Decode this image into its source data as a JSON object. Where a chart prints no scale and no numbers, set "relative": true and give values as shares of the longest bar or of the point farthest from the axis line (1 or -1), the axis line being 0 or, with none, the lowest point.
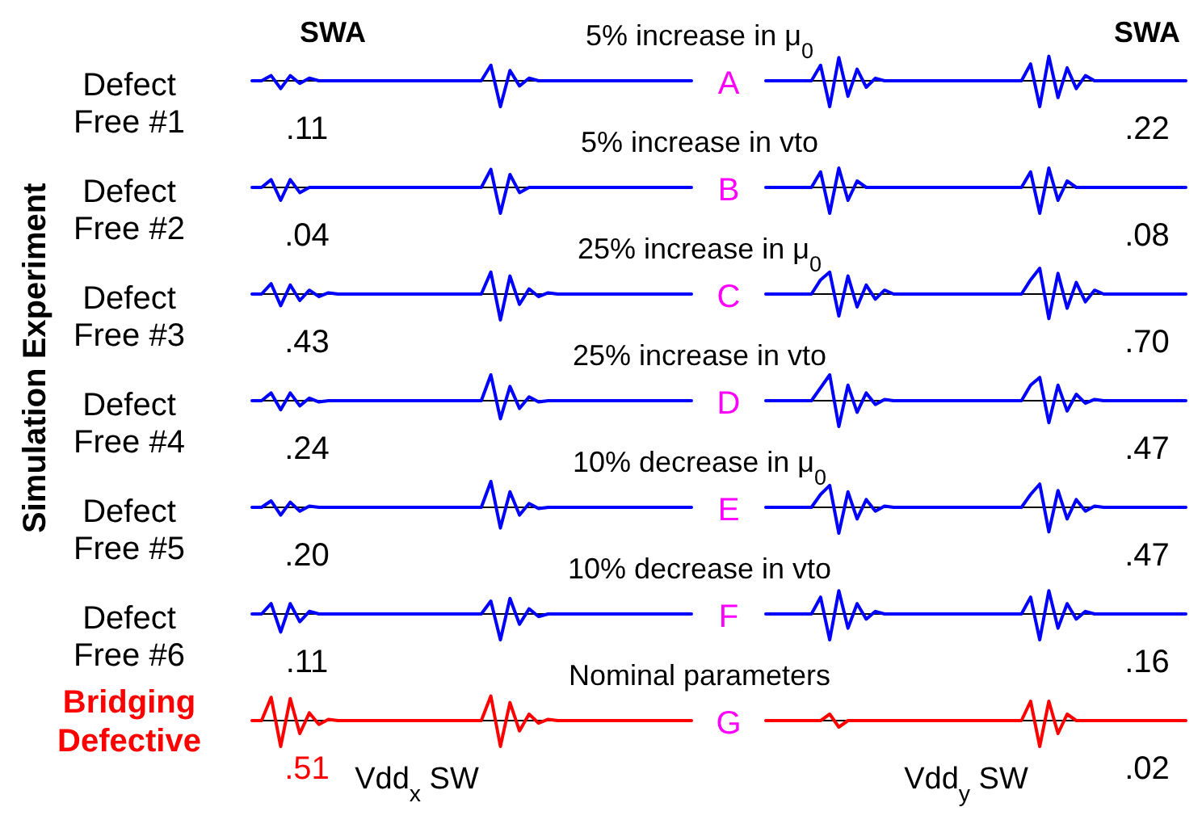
{
  "chart_data": [
    {
      "type": "line",
      "relative": true,
      "title": "5% increase in μ$_{0}$",
      "ylabel": "Defect Free #1",
      "annotations": [
        "A",
        ".11",
        "SWA",
        "Simulation Experiment"
      ],
      "categories": [
        null,
        null,
        null,
        null,
        null,
        null,
        null,
        null,
        null,
        null,
        null,
        null,
        null,
        null,
        null,
        null,
        null,
        null,
        null,
        null,
        null,
        null,
        null,
        null,
        null,
        null,
        null,
        null,
        null,
        null,
        null,
        null,
        null,
        null,
        null,
        null,
        null,
        null,
        null,
        null,
        null,
        null,
        null,
        null,
        null,
        null,
        null
      ],
      "series": [
        {
          "color": "#0000ff",
          "values": [
            0,
            0,
            0.2,
            -0.3,
            0.2,
            -0.1,
            0.1,
            0,
            0,
            0,
            0,
            0,
            0,
            0,
            0,
            0,
            0,
            0,
            0,
            0,
            0,
            0,
            0,
            0,
            0,
            0.6,
            -1,
            0.4,
            -0.2,
            0.1,
            0,
            0,
            0,
            0,
            0,
            0,
            0,
            0,
            0,
            0,
            0,
            0,
            0,
            0,
            0,
            0,
            0
          ]
        }
      ]
    },
    {
      "type": "line",
      "relative": true,
      "annotations": [
        ".22",
        "SWA"
      ],
      "categories": [
        null,
        null,
        null,
        null,
        null,
        null,
        null,
        null,
        null,
        null,
        null,
        null,
        null,
        null,
        null,
        null,
        null,
        null,
        null,
        null,
        null,
        null,
        null,
        null,
        null,
        null,
        null,
        null,
        null,
        null,
        null,
        null,
        null,
        null,
        null,
        null,
        null,
        null,
        null,
        null,
        null,
        null,
        null,
        null,
        null,
        null,
        null
      ],
      "series": [
        {
          "color": "#0000ff",
          "values": [
            0,
            0,
            0,
            0,
            0,
            0,
            0.6,
            -1,
            0.9,
            -0.6,
            0.45,
            -0.25,
            0.1,
            0,
            0,
            0,
            0,
            0,
            0,
            0,
            0,
            0,
            0,
            0,
            0,
            0,
            0,
            0,
            0,
            0.65,
            -1,
            0.95,
            -0.65,
            0.5,
            -0.3,
            0.2,
            0,
            0,
            0,
            0,
            0,
            0,
            0,
            0,
            0,
            0,
            0
          ]
        }
      ]
    },
    {
      "type": "line",
      "relative": true,
      "title": "5% increase in vto",
      "ylabel": "Defect Free #2",
      "annotations": [
        "B",
        ".04"
      ],
      "categories": [
        null,
        null,
        null,
        null,
        null,
        null,
        null,
        null,
        null,
        null,
        null,
        null,
        null,
        null,
        null,
        null,
        null,
        null,
        null,
        null,
        null,
        null,
        null,
        null,
        null,
        null,
        null,
        null,
        null,
        null,
        null,
        null,
        null,
        null,
        null,
        null,
        null,
        null,
        null,
        null,
        null,
        null,
        null,
        null,
        null,
        null,
        null
      ],
      "series": [
        {
          "color": "#0000ff",
          "values": [
            0,
            0,
            0.3,
            -0.5,
            0.3,
            -0.2,
            0,
            0,
            0,
            0,
            0,
            0,
            0,
            0,
            0,
            0,
            0,
            0,
            0,
            0,
            0,
            0,
            0,
            0,
            0,
            0.7,
            -1,
            0.5,
            -0.2,
            0,
            0,
            0,
            0,
            0,
            0,
            0,
            0,
            0,
            0,
            0,
            0,
            0,
            0,
            0,
            0,
            0,
            0
          ]
        }
      ]
    },
    {
      "type": "line",
      "relative": true,
      "annotations": [
        ".08"
      ],
      "categories": [
        null,
        null,
        null,
        null,
        null,
        null,
        null,
        null,
        null,
        null,
        null,
        null,
        null,
        null,
        null,
        null,
        null,
        null,
        null,
        null,
        null,
        null,
        null,
        null,
        null,
        null,
        null,
        null,
        null,
        null,
        null,
        null,
        null,
        null,
        null,
        null,
        null,
        null,
        null,
        null,
        null,
        null,
        null,
        null,
        null,
        null,
        null
      ],
      "series": [
        {
          "color": "#0000ff",
          "values": [
            0,
            0,
            0,
            0,
            0,
            0,
            0.6,
            -1,
            0.75,
            -0.5,
            0.25,
            0,
            0,
            0,
            0,
            0,
            0,
            0,
            0,
            0,
            0,
            0,
            0,
            0,
            0,
            0,
            0,
            0,
            0,
            0.6,
            -1,
            0.75,
            -0.5,
            0.25,
            0,
            0,
            0,
            0,
            0,
            0,
            0,
            0,
            0,
            0,
            0,
            0,
            0
          ]
        }
      ]
    },
    {
      "type": "line",
      "relative": true,
      "title": "25% increase in μ$_{0}$",
      "ylabel": "Defect Free #3",
      "annotations": [
        "C",
        ".43"
      ],
      "categories": [
        null,
        null,
        null,
        null,
        null,
        null,
        null,
        null,
        null,
        null,
        null,
        null,
        null,
        null,
        null,
        null,
        null,
        null,
        null,
        null,
        null,
        null,
        null,
        null,
        null,
        null,
        null,
        null,
        null,
        null,
        null,
        null,
        null,
        null,
        null,
        null,
        null,
        null,
        null,
        null,
        null,
        null,
        null,
        null,
        null,
        null,
        null
      ],
      "series": [
        {
          "color": "#0000ff",
          "values": [
            0,
            0,
            0.4,
            -0.45,
            0.35,
            -0.25,
            0.15,
            -0.1,
            0.05,
            0,
            0,
            0,
            0,
            0,
            0,
            0,
            0,
            0,
            0,
            0,
            0,
            0,
            0,
            0,
            0,
            0.85,
            -1,
            0.7,
            -0.4,
            0.2,
            -0.1,
            0.05,
            0,
            0,
            0,
            0,
            0,
            0,
            0,
            0,
            0,
            0,
            0,
            0,
            0,
            0,
            0
          ]
        }
      ]
    },
    {
      "type": "line",
      "relative": true,
      "annotations": [
        ".70"
      ],
      "categories": [
        null,
        null,
        null,
        null,
        null,
        null,
        null,
        null,
        null,
        null,
        null,
        null,
        null,
        null,
        null,
        null,
        null,
        null,
        null,
        null,
        null,
        null,
        null,
        null,
        null,
        null,
        null,
        null,
        null,
        null,
        null,
        null,
        null,
        null,
        null,
        null,
        null,
        null,
        null,
        null,
        null,
        null,
        null,
        null,
        null,
        null,
        null
      ],
      "series": [
        {
          "color": "#0000ff",
          "values": [
            0,
            0,
            0,
            0,
            0,
            0,
            0.55,
            0.85,
            -0.85,
            0.7,
            -0.5,
            0.35,
            -0.2,
            0.15,
            0,
            0,
            0,
            0,
            0,
            0,
            0,
            0,
            0,
            0,
            0,
            0,
            0,
            0,
            0,
            0.55,
            1,
            -0.95,
            0.8,
            -0.55,
            0.45,
            -0.3,
            0.15,
            0,
            0,
            0,
            0,
            0,
            0,
            0,
            0,
            0,
            0
          ]
        }
      ]
    },
    {
      "type": "line",
      "relative": true,
      "title": "25% increase in vto",
      "ylabel": "Defect Free #4",
      "annotations": [
        "D",
        ".24"
      ],
      "categories": [
        null,
        null,
        null,
        null,
        null,
        null,
        null,
        null,
        null,
        null,
        null,
        null,
        null,
        null,
        null,
        null,
        null,
        null,
        null,
        null,
        null,
        null,
        null,
        null,
        null,
        null,
        null,
        null,
        null,
        null,
        null,
        null,
        null,
        null,
        null,
        null,
        null,
        null,
        null,
        null,
        null,
        null,
        null,
        null,
        null,
        null,
        null
      ],
      "series": [
        {
          "color": "#0000ff",
          "values": [
            0,
            0,
            0.3,
            -0.35,
            0.3,
            -0.2,
            0.1,
            -0.05,
            0,
            0,
            0,
            0,
            0,
            0,
            0,
            0,
            0,
            0,
            0,
            0,
            0,
            0,
            0,
            0,
            0,
            1,
            -0.7,
            0.55,
            -0.3,
            0.15,
            -0.05,
            0,
            0,
            0,
            0,
            0,
            0,
            0,
            0,
            0,
            0,
            0,
            0,
            0,
            0,
            0,
            0
          ]
        }
      ]
    },
    {
      "type": "line",
      "relative": true,
      "annotations": [
        ".47"
      ],
      "categories": [
        null,
        null,
        null,
        null,
        null,
        null,
        null,
        null,
        null,
        null,
        null,
        null,
        null,
        null,
        null,
        null,
        null,
        null,
        null,
        null,
        null,
        null,
        null,
        null,
        null,
        null,
        null,
        null,
        null,
        null,
        null,
        null,
        null,
        null,
        null,
        null,
        null,
        null,
        null,
        null,
        null,
        null,
        null,
        null,
        null,
        null,
        null
      ],
      "series": [
        {
          "color": "#0000ff",
          "values": [
            0,
            0,
            0,
            0,
            0,
            0,
            0.5,
            1,
            -1,
            0.6,
            -0.45,
            0.3,
            -0.15,
            0.05,
            0,
            0,
            0,
            0,
            0,
            0,
            0,
            0,
            0,
            0,
            0,
            0,
            0,
            0,
            0,
            0.6,
            0.9,
            -0.85,
            0.6,
            -0.4,
            0.25,
            -0.1,
            0.05,
            0,
            0,
            0,
            0,
            0,
            0,
            0,
            0,
            0,
            0
          ]
        }
      ]
    },
    {
      "type": "line",
      "relative": true,
      "title": "10% decrease in μ$_{0}$",
      "ylabel": "Defect Free #5",
      "annotations": [
        "E",
        ".20"
      ],
      "categories": [
        null,
        null,
        null,
        null,
        null,
        null,
        null,
        null,
        null,
        null,
        null,
        null,
        null,
        null,
        null,
        null,
        null,
        null,
        null,
        null,
        null,
        null,
        null,
        null,
        null,
        null,
        null,
        null,
        null,
        null,
        null,
        null,
        null,
        null,
        null,
        null,
        null,
        null,
        null,
        null,
        null,
        null,
        null,
        null,
        null,
        null,
        null
      ],
      "series": [
        {
          "color": "#0000ff",
          "values": [
            0,
            0,
            0.25,
            -0.3,
            0.2,
            -0.15,
            0.05,
            0,
            0,
            0,
            0,
            0,
            0,
            0,
            0,
            0,
            0,
            0,
            0,
            0,
            0,
            0,
            0,
            0,
            0,
            1,
            -0.8,
            0.6,
            -0.3,
            0.15,
            -0.05,
            0,
            0,
            0,
            0,
            0,
            0,
            0,
            0,
            0,
            0,
            0,
            0,
            0,
            0,
            0,
            0
          ]
        }
      ]
    },
    {
      "type": "line",
      "relative": true,
      "annotations": [
        ".47"
      ],
      "categories": [
        null,
        null,
        null,
        null,
        null,
        null,
        null,
        null,
        null,
        null,
        null,
        null,
        null,
        null,
        null,
        null,
        null,
        null,
        null,
        null,
        null,
        null,
        null,
        null,
        null,
        null,
        null,
        null,
        null,
        null,
        null,
        null,
        null,
        null,
        null,
        null,
        null,
        null,
        null,
        null,
        null,
        null,
        null,
        null,
        null,
        null,
        null
      ],
      "series": [
        {
          "color": "#0000ff",
          "values": [
            0,
            0,
            0,
            0,
            0,
            0,
            0.5,
            0.85,
            -1,
            0.6,
            -0.45,
            0.3,
            -0.15,
            0.05,
            0,
            0,
            0,
            0,
            0,
            0,
            0,
            0,
            0,
            0,
            0,
            0,
            0,
            0,
            0,
            0.5,
            0.9,
            -0.95,
            0.65,
            -0.45,
            0.3,
            -0.15,
            0.05,
            0,
            0,
            0,
            0,
            0,
            0,
            0,
            0,
            0,
            0
          ]
        }
      ]
    },
    {
      "type": "line",
      "relative": true,
      "title": "10% decrease in vto",
      "ylabel": "Defect Free #6",
      "annotations": [
        "F",
        ".11"
      ],
      "categories": [
        null,
        null,
        null,
        null,
        null,
        null,
        null,
        null,
        null,
        null,
        null,
        null,
        null,
        null,
        null,
        null,
        null,
        null,
        null,
        null,
        null,
        null,
        null,
        null,
        null,
        null,
        null,
        null,
        null,
        null,
        null,
        null,
        null,
        null,
        null,
        null,
        null,
        null,
        null,
        null,
        null,
        null,
        null,
        null,
        null,
        null,
        null
      ],
      "series": [
        {
          "color": "#0000ff",
          "values": [
            0,
            0,
            0.4,
            -0.7,
            0.4,
            -0.3,
            0.1,
            0,
            0,
            0,
            0,
            0,
            0,
            0,
            0,
            0,
            0,
            0,
            0,
            0,
            0,
            0,
            0,
            0,
            0,
            0.5,
            -1,
            0.6,
            -0.4,
            0.2,
            -0.1,
            0,
            0,
            0,
            0,
            0,
            0,
            0,
            0,
            0,
            0,
            0,
            0,
            0,
            0,
            0,
            0
          ]
        }
      ]
    },
    {
      "type": "line",
      "relative": true,
      "annotations": [
        ".16"
      ],
      "categories": [
        null,
        null,
        null,
        null,
        null,
        null,
        null,
        null,
        null,
        null,
        null,
        null,
        null,
        null,
        null,
        null,
        null,
        null,
        null,
        null,
        null,
        null,
        null,
        null,
        null,
        null,
        null,
        null,
        null,
        null,
        null,
        null,
        null,
        null,
        null,
        null,
        null,
        null,
        null,
        null,
        null,
        null,
        null,
        null,
        null,
        null,
        null
      ],
      "series": [
        {
          "color": "#0000ff",
          "values": [
            0,
            0,
            0,
            0,
            0,
            0,
            0.65,
            -1,
            0.9,
            -0.55,
            0.4,
            -0.2,
            0.1,
            0,
            0,
            0,
            0,
            0,
            0,
            0,
            0,
            0,
            0,
            0,
            0,
            0,
            0,
            0,
            0,
            0.65,
            -1,
            0.9,
            -0.55,
            0.4,
            -0.2,
            0.1,
            0,
            0,
            0,
            0,
            0,
            0,
            0,
            0,
            0,
            0,
            0
          ]
        }
      ]
    },
    {
      "type": "line",
      "relative": true,
      "title": "Nominal parameters",
      "annotations": [
        "G",
        ".51",
        "Vdd$_{x}$ SW"
      ],
      "categories": [
        null,
        null,
        null,
        null,
        null,
        null,
        null,
        null,
        null,
        null,
        null,
        null,
        null,
        null,
        null,
        null,
        null,
        null,
        null,
        null,
        null,
        null,
        null,
        null,
        null,
        null,
        null,
        null,
        null,
        null,
        null,
        null,
        null,
        null,
        null,
        null,
        null,
        null,
        null,
        null,
        null,
        null,
        null,
        null,
        null,
        null,
        null
      ],
      "series": [
        {
          "name": "Bridging Defective",
          "color": "#ff0000",
          "values": [
            0,
            0,
            0.9,
            -1,
            0.85,
            -0.5,
            0.3,
            -0.15,
            0.05,
            0,
            0,
            0,
            0,
            0,
            0,
            0,
            0,
            0,
            0,
            0,
            0,
            0,
            0,
            0,
            0,
            0.95,
            -1,
            0.7,
            -0.4,
            0.25,
            -0.1,
            0.05,
            0,
            0,
            0,
            0,
            0,
            0,
            0,
            0,
            0,
            0,
            0,
            0,
            0,
            0,
            0
          ]
        }
      ]
    },
    {
      "type": "line",
      "relative": true,
      "annotations": [
        ".02",
        "Vdd$_{y}$ SW"
      ],
      "categories": [
        null,
        null,
        null,
        null,
        null,
        null,
        null,
        null,
        null,
        null,
        null,
        null,
        null,
        null,
        null,
        null,
        null,
        null,
        null,
        null,
        null,
        null,
        null,
        null,
        null,
        null,
        null,
        null,
        null,
        null,
        null,
        null,
        null,
        null,
        null,
        null,
        null,
        null,
        null,
        null,
        null,
        null,
        null,
        null,
        null,
        null,
        null
      ],
      "series": [
        {
          "color": "#ff0000",
          "values": [
            0,
            0,
            0,
            0,
            0,
            0,
            0,
            0.25,
            -0.25,
            0,
            0,
            0,
            0,
            0,
            0,
            0,
            0,
            0,
            0,
            0,
            0,
            0,
            0,
            0,
            0,
            0,
            0,
            0,
            0,
            0.75,
            -1,
            0.75,
            -0.5,
            0.25,
            0,
            0,
            0,
            0,
            0,
            0,
            0,
            0,
            0,
            0,
            0,
            0,
            0
          ]
        }
      ]
    }
  ]
}
